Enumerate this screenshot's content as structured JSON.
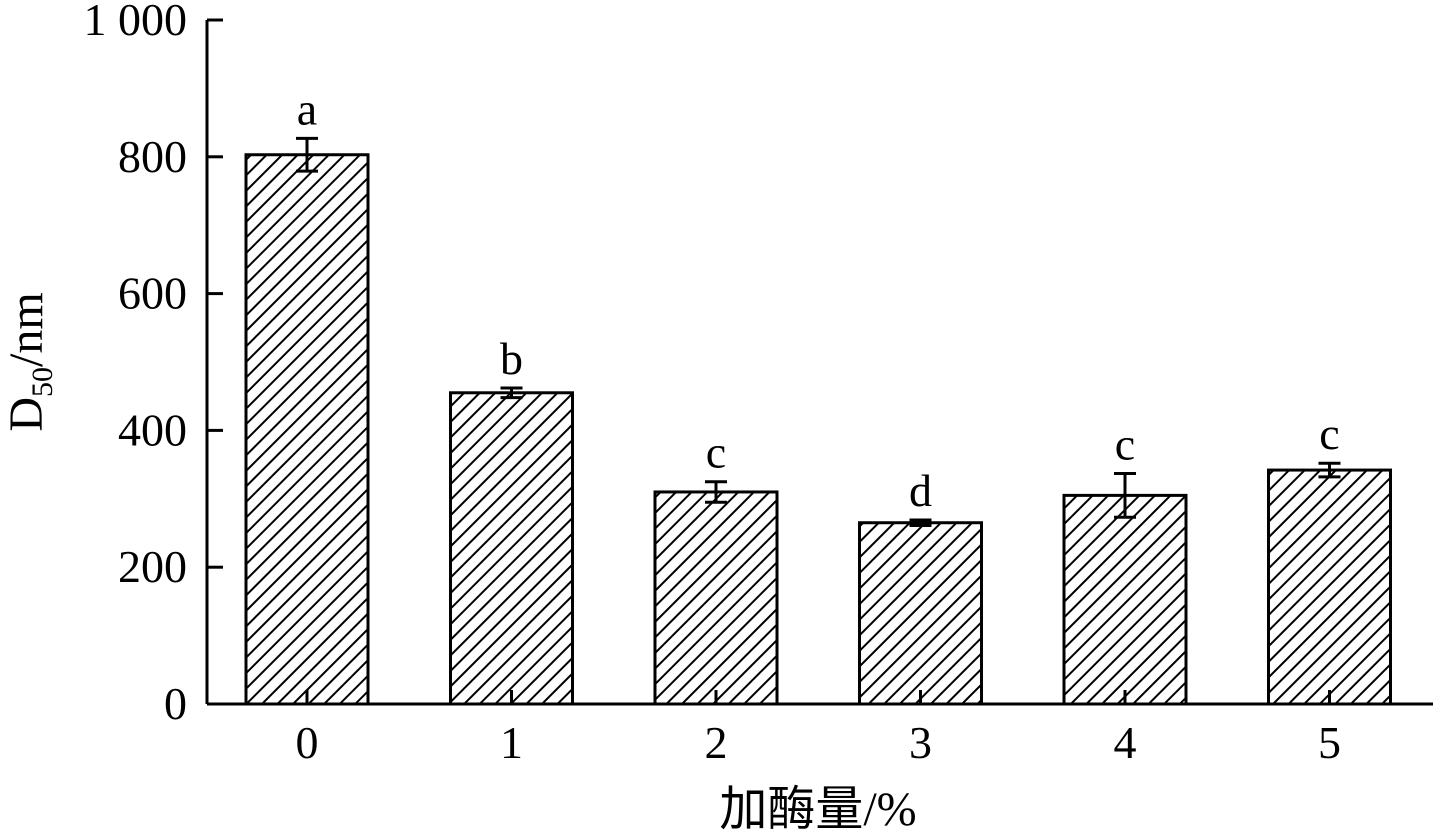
{
  "chart_data": {
    "type": "bar",
    "xlabel": "加酶量/%",
    "ylabel": {
      "main": "D",
      "sub": "50",
      "unit": "/nm"
    },
    "categories": [
      "0",
      "1",
      "2",
      "3",
      "4",
      "5"
    ],
    "values": [
      803,
      455,
      310,
      265,
      305,
      342
    ],
    "errors": [
      24,
      7,
      15,
      4,
      32,
      10
    ],
    "significance": [
      "a",
      "b",
      "c",
      "d",
      "c",
      "c"
    ],
    "ylim": [
      0,
      1000
    ],
    "yticks": [
      0,
      200,
      400,
      600,
      800,
      1000
    ],
    "ytick_labels": [
      "0",
      "200",
      "400",
      "600",
      "800",
      "1 000"
    ],
    "fill_pattern": "diagonal-hatch",
    "colors": {
      "stroke": "#000000",
      "fill": "#ffffff"
    },
    "grid": false,
    "legend": "none"
  }
}
